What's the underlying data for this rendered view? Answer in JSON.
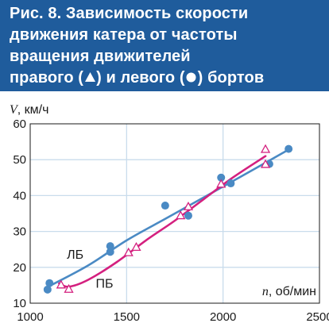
{
  "header": {
    "line1": "Рис. 8. Зависимость скорости",
    "line2": "движения катера от частоты",
    "line3": "вращения движителей",
    "line4_prefix": "правого (",
    "line4_mid": ") и левого (",
    "line4_suffix": ") бортов",
    "triangle_icon": "triangle-icon",
    "circle_icon": "circle-icon"
  },
  "colors": {
    "header_bg": "#1f5c9c",
    "left_series": "#4a8ac4",
    "right_series": "#d4207f",
    "grid": "#c9dcec"
  },
  "chart_data": {
    "type": "line",
    "title": "Рис. 8. Зависимость скорости движения катера от частоты вращения движителей правого (▲) и левого (●) бортов",
    "xlabel_var": "n",
    "xlabel_unit": ", об/мин",
    "ylabel_var": "V",
    "ylabel_unit": ", км/ч",
    "xlim": [
      1000,
      2500
    ],
    "ylim": [
      10,
      60
    ],
    "xticks": [
      1000,
      1500,
      2000,
      2500
    ],
    "yticks": [
      10,
      20,
      30,
      40,
      50,
      60
    ],
    "grid": true,
    "series": [
      {
        "name": "ЛБ",
        "marker": "circle",
        "color": "#4a8ac4",
        "points": [
          {
            "x": 1090,
            "y": 13.8
          },
          {
            "x": 1100,
            "y": 15.6
          },
          {
            "x": 1415,
            "y": 24.3
          },
          {
            "x": 1415,
            "y": 25.9
          },
          {
            "x": 1700,
            "y": 37.2
          },
          {
            "x": 1820,
            "y": 34.4
          },
          {
            "x": 1990,
            "y": 45.0
          },
          {
            "x": 2040,
            "y": 43.4
          },
          {
            "x": 2240,
            "y": 48.8
          },
          {
            "x": 2340,
            "y": 53.0
          }
        ],
        "curve": [
          {
            "x": 1090,
            "y": 14.5
          },
          {
            "x": 1300,
            "y": 20.5
          },
          {
            "x": 1500,
            "y": 27.5
          },
          {
            "x": 1700,
            "y": 33.5
          },
          {
            "x": 1900,
            "y": 39.5
          },
          {
            "x": 2100,
            "y": 45.5
          },
          {
            "x": 2340,
            "y": 52.8
          }
        ]
      },
      {
        "name": "ПБ",
        "marker": "triangle",
        "color": "#d4207f",
        "points": [
          {
            "x": 1160,
            "y": 15.0
          },
          {
            "x": 1200,
            "y": 13.8
          },
          {
            "x": 1510,
            "y": 24.0
          },
          {
            "x": 1550,
            "y": 25.5
          },
          {
            "x": 1780,
            "y": 34.3
          },
          {
            "x": 1820,
            "y": 36.8
          },
          {
            "x": 1990,
            "y": 43.1
          },
          {
            "x": 2220,
            "y": 48.6
          },
          {
            "x": 2220,
            "y": 52.8
          }
        ],
        "curve": [
          {
            "x": 1150,
            "y": 15.5
          },
          {
            "x": 1200,
            "y": 14.6
          },
          {
            "x": 1300,
            "y": 16.5
          },
          {
            "x": 1450,
            "y": 21.5
          },
          {
            "x": 1600,
            "y": 27.5
          },
          {
            "x": 1750,
            "y": 33.0
          },
          {
            "x": 1900,
            "y": 39.0
          },
          {
            "x": 2050,
            "y": 45.0
          },
          {
            "x": 2220,
            "y": 51.0
          }
        ]
      }
    ]
  }
}
